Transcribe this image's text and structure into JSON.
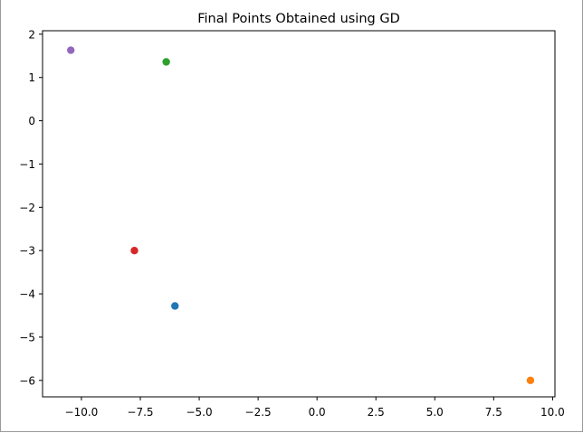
{
  "chart_data": {
    "type": "scatter",
    "title": "Final Points Obtained using GD",
    "xlabel": "",
    "ylabel": "",
    "xlim": [
      -11.65,
      10.1
    ],
    "ylim": [
      -6.38,
      2.08
    ],
    "xticks": [
      -10.0,
      -7.5,
      -5.0,
      -2.5,
      0.0,
      2.5,
      5.0,
      7.5,
      10.0
    ],
    "xtick_labels": [
      "−10.0",
      "−7.5",
      "−5.0",
      "−2.5",
      "0.0",
      "2.5",
      "5.0",
      "7.5",
      "10.0"
    ],
    "yticks": [
      -6,
      -5,
      -4,
      -3,
      -2,
      -1,
      0,
      1,
      2
    ],
    "ytick_labels": [
      "−6",
      "−5",
      "−4",
      "−3",
      "−2",
      "−1",
      "0",
      "1",
      "2"
    ],
    "grid": false,
    "legend": false,
    "points": [
      {
        "x": -6.03,
        "y": -4.28,
        "color": "#1f77b4"
      },
      {
        "x": 9.06,
        "y": -6.0,
        "color": "#ff7f0e"
      },
      {
        "x": -6.4,
        "y": 1.36,
        "color": "#2ca02c"
      },
      {
        "x": -7.75,
        "y": -3.0,
        "color": "#d62728"
      },
      {
        "x": -10.45,
        "y": 1.63,
        "color": "#9467bd"
      }
    ]
  }
}
